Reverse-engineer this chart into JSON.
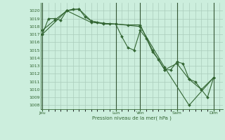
{
  "bg_color": "#cceedd",
  "grid_color": "#aaccbb",
  "line_color": "#336633",
  "marker_color": "#336633",
  "xlabel_text": "Pression niveau de la mer( hPa )",
  "ylim": [
    1007.5,
    1021.0
  ],
  "yticks": [
    1008,
    1009,
    1010,
    1011,
    1012,
    1013,
    1014,
    1015,
    1016,
    1017,
    1018,
    1019,
    1020
  ],
  "day_labels": [
    "Jeu",
    "Lun",
    "Ven",
    "Sam",
    "Dim"
  ],
  "day_positions": [
    0,
    12,
    16,
    22,
    28
  ],
  "xlim": [
    -0.3,
    29.5
  ],
  "series": [
    {
      "x": [
        0,
        1,
        2,
        3,
        4,
        5,
        6,
        7,
        8,
        9,
        10,
        11,
        12,
        13,
        14,
        15,
        16,
        17,
        18,
        19,
        20,
        21,
        22,
        23,
        24,
        25,
        26,
        27,
        28
      ],
      "y": [
        1017.0,
        1019.0,
        1019.0,
        1018.8,
        1020.0,
        1020.2,
        1020.2,
        1019.2,
        1018.7,
        1018.5,
        1018.3,
        1018.3,
        1018.3,
        1016.7,
        1015.3,
        1015.0,
        1017.5,
        1016.5,
        1014.8,
        1013.8,
        1012.5,
        1012.5,
        1013.5,
        1013.3,
        1011.3,
        1011.0,
        1010.0,
        1009.0,
        1011.5
      ]
    },
    {
      "x": [
        0,
        2,
        4,
        6,
        8,
        10,
        12,
        14,
        16,
        18,
        20,
        22,
        24,
        26,
        28
      ],
      "y": [
        1017.5,
        1018.8,
        1020.0,
        1020.2,
        1018.7,
        1018.4,
        1018.3,
        1018.2,
        1018.2,
        1015.0,
        1012.5,
        1013.3,
        1011.3,
        1010.0,
        1011.5
      ]
    },
    {
      "x": [
        0,
        4,
        8,
        12,
        16,
        20,
        24,
        28
      ],
      "y": [
        1017.0,
        1020.0,
        1018.5,
        1018.3,
        1018.0,
        1012.8,
        1008.0,
        1011.5
      ]
    }
  ]
}
